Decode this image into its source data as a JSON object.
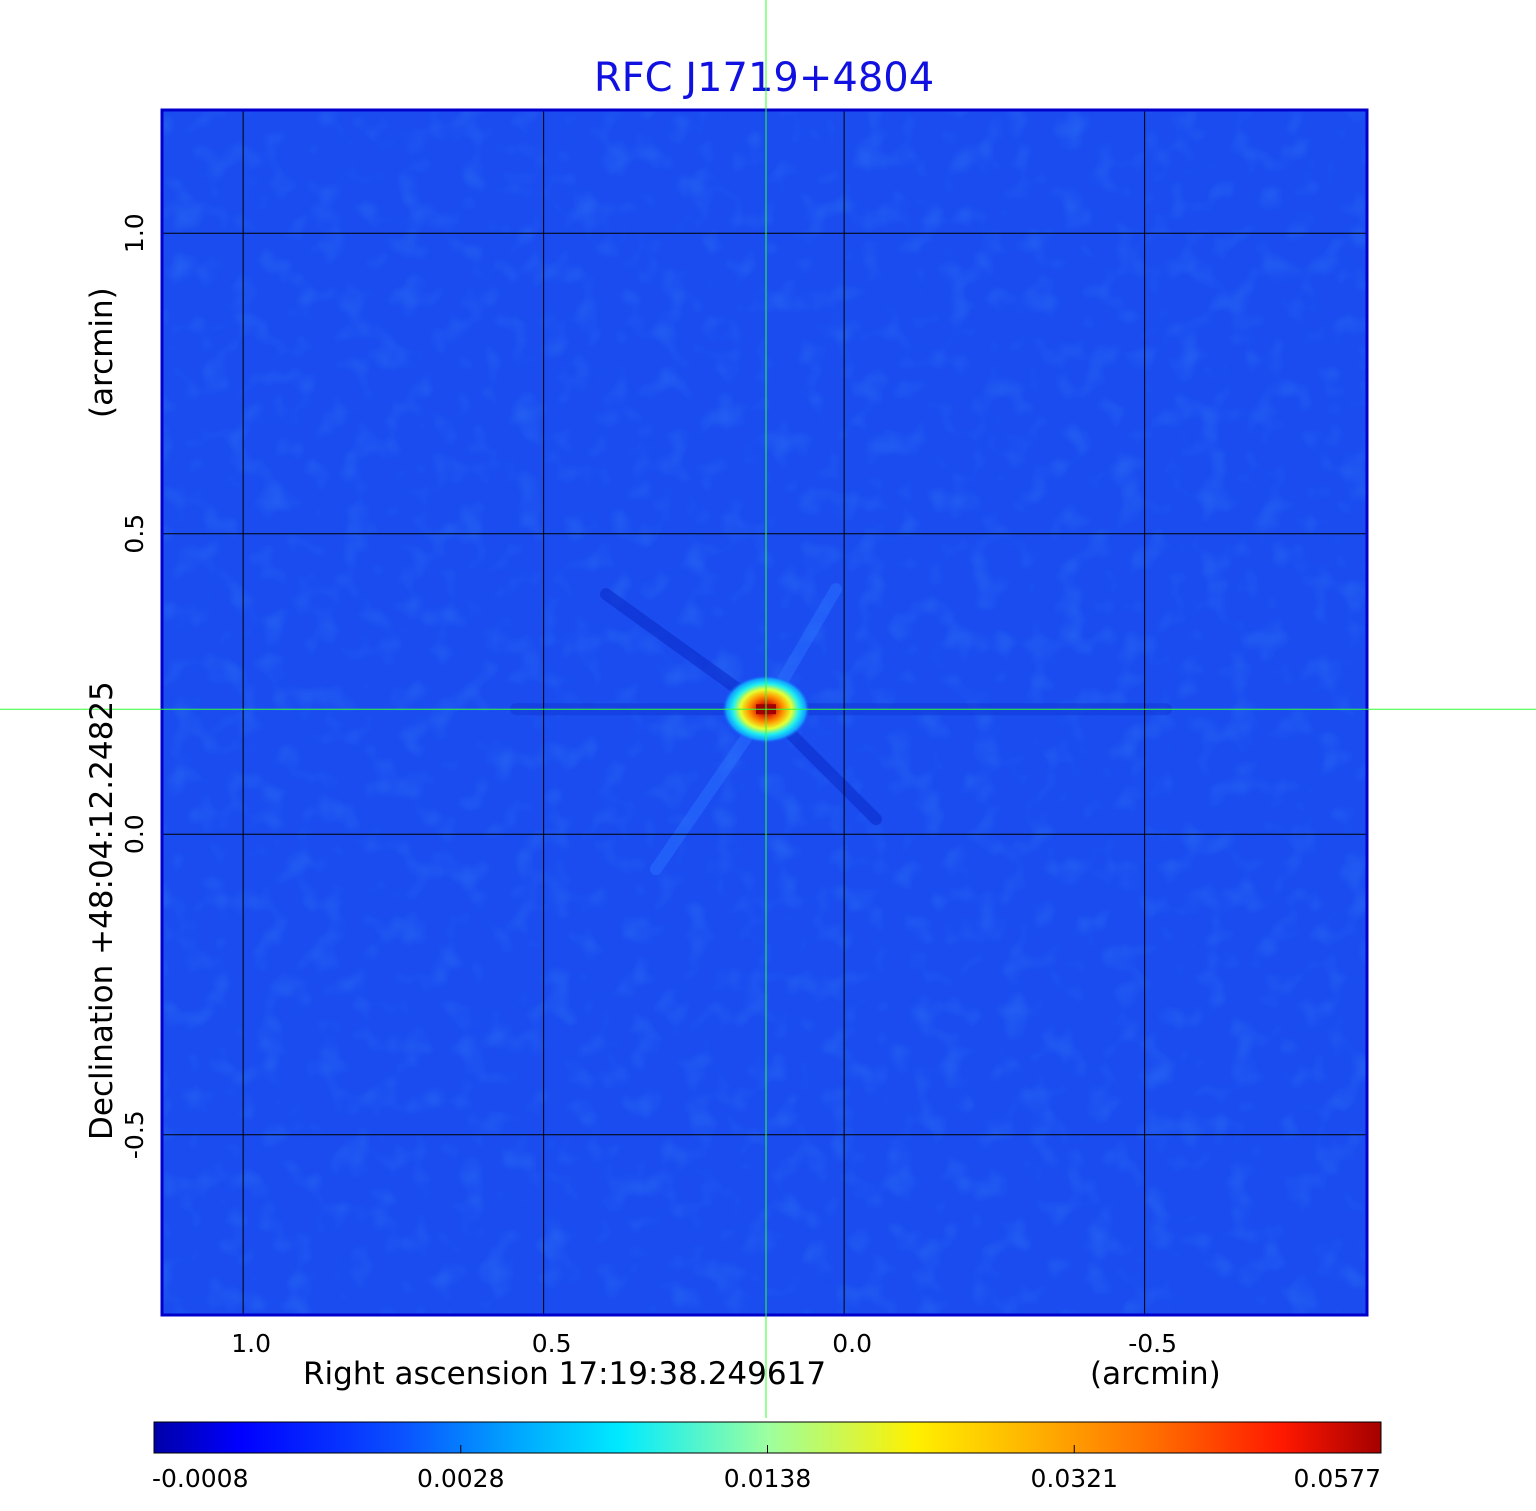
{
  "chart_data": {
    "type": "heatmap",
    "title": "RFC J1719+4804",
    "xlabel": "Right ascension  17:19:38.249617",
    "xunit": "(arcmin)",
    "ylabel": "Declination  +48:04:12.24825",
    "yunit": "(arcmin)",
    "x_ticks": [
      {
        "value": 1.0,
        "label": "1.0"
      },
      {
        "value": 0.5,
        "label": "0.5"
      },
      {
        "value": 0.0,
        "label": "0.0"
      },
      {
        "value": -0.5,
        "label": "-0.5"
      }
    ],
    "y_ticks": [
      {
        "value": 1.0,
        "label": "1.0"
      },
      {
        "value": 0.5,
        "label": "0.5"
      },
      {
        "value": 0.0,
        "label": "0.0"
      },
      {
        "value": -0.5,
        "label": "-0.5"
      }
    ],
    "xlim": [
      1.135,
      -0.87
    ],
    "ylim": [
      -0.8,
      1.205
    ],
    "grid": true,
    "crosshair": {
      "x": 0.13,
      "y": 0.208
    },
    "source_peak": {
      "x": 0.13,
      "y": 0.208,
      "value": 0.0577
    },
    "colorbar": {
      "ticks": [
        {
          "label": "-0.0008",
          "fraction": 0.0
        },
        {
          "label": "0.0028",
          "fraction": 0.25
        },
        {
          "label": "0.0138",
          "fraction": 0.5
        },
        {
          "label": "0.0321",
          "fraction": 0.75
        },
        {
          "label": "0.0577",
          "fraction": 1.0
        }
      ],
      "colormap": "jet"
    }
  },
  "colors": {
    "title": "#1010e0",
    "background_map": "#1a4cf0",
    "grid": "#000000",
    "crosshair": "#33ff33"
  }
}
